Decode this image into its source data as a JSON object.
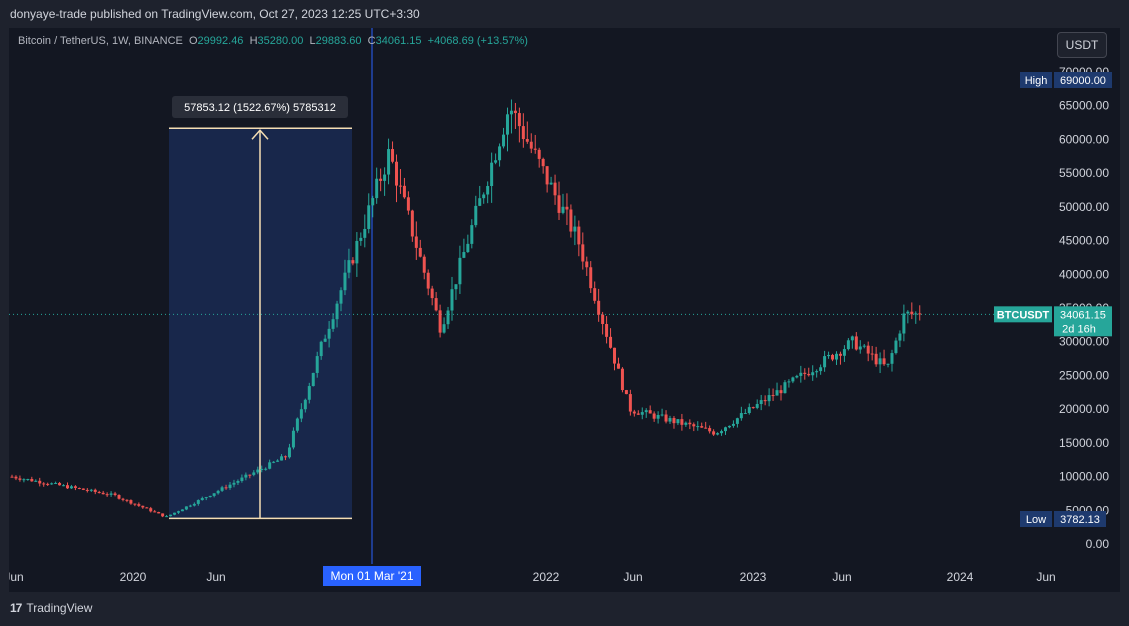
{
  "header": {
    "published": "donyaye-trade published on TradingView.com, Oct 27, 2023 12:25 UTC+3:30"
  },
  "symbol": {
    "name": "Bitcoin / TetherUS, 1W, BINANCE",
    "open_label": "O",
    "open": "29992.46",
    "high_label": "H",
    "high": "35280.00",
    "low_label": "L",
    "low": "29883.60",
    "close_label": "C",
    "close": "34061.15",
    "change": "+4068.69 (+13.57%)"
  },
  "currency_button": "USDT",
  "measure_label": "57853.12 (1522.67%) 5785312",
  "crosshair_date": "Mon 01 Mar '21",
  "markers": {
    "high_label": "High",
    "high_value": "69000.00",
    "low_label": "Low",
    "low_value": "3782.13",
    "price_symbol": "BTCUSDT",
    "price_value": "34061.15",
    "countdown": "2d 16h"
  },
  "footer": {
    "brand": "TradingView"
  },
  "colors": {
    "up": "#26a69a",
    "down": "#ef5350",
    "measure_fill": "#1a2a52",
    "measure_line": "#f5deb3",
    "crosshair": "#2962ff"
  },
  "chart_data": {
    "type": "candlestick",
    "y_ticks": [
      "70000.00",
      "65000.00",
      "60000.00",
      "55000.00",
      "50000.00",
      "45000.00",
      "40000.00",
      "35000.00",
      "30000.00",
      "25000.00",
      "20000.00",
      "15000.00",
      "10000.00",
      "5000.00",
      "0.00"
    ],
    "x_ticks": [
      "Jun",
      "2020",
      "Jun",
      "2022",
      "Jun",
      "2023",
      "Jun",
      "2024",
      "Jun"
    ],
    "ylim": [
      0,
      70000
    ],
    "measure": {
      "from": 3800,
      "to": 61650
    },
    "current_price": 34061.15,
    "key_points": [
      {
        "date": "2019-06",
        "price": 10000
      },
      {
        "date": "2019-12",
        "price": 7200
      },
      {
        "date": "2020-03",
        "price": 4000
      },
      {
        "date": "2020-10",
        "price": 13000
      },
      {
        "date": "2020-12",
        "price": 29000
      },
      {
        "date": "2021-04",
        "price": 58000
      },
      {
        "date": "2021-07",
        "price": 32000
      },
      {
        "date": "2021-11",
        "price": 65000
      },
      {
        "date": "2022-03",
        "price": 45000
      },
      {
        "date": "2022-06",
        "price": 20000
      },
      {
        "date": "2022-11",
        "price": 16500
      },
      {
        "date": "2023-07",
        "price": 30000
      },
      {
        "date": "2023-09",
        "price": 26000
      },
      {
        "date": "2023-10",
        "price": 34061
      }
    ]
  }
}
